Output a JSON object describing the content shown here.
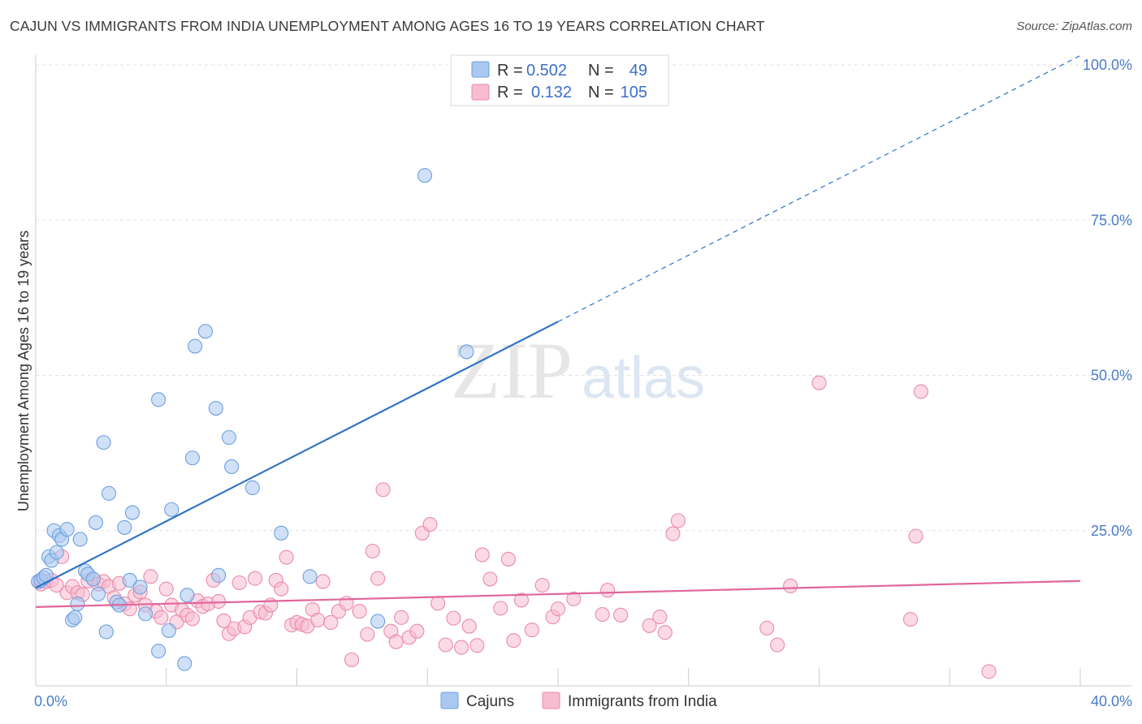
{
  "title": "CAJUN VS IMMIGRANTS FROM INDIA UNEMPLOYMENT AMONG AGES 16 TO 19 YEARS CORRELATION CHART",
  "source": "Source: ZipAtlas.com",
  "watermark": {
    "zip": "ZIP",
    "atlas": "atlas"
  },
  "legend": {
    "rows": [
      {
        "r_label": "R =",
        "r_value": "0.502",
        "n_label": "N =",
        "n_value": "49",
        "color": "#a9c8f0",
        "stroke": "#6e9fe0"
      },
      {
        "r_label": "R =",
        "r_value": "0.132",
        "n_label": "N =",
        "n_value": "105",
        "color": "#f7bcd0",
        "stroke": "#ea8aaa"
      }
    ]
  },
  "bottom_legend": [
    {
      "label": "Cajuns",
      "color": "#a9c8f0",
      "stroke": "#6e9fe0"
    },
    {
      "label": "Immigrants from India",
      "color": "#f7bcd0",
      "stroke": "#ea8aaa"
    }
  ],
  "chart_data": {
    "type": "scatter",
    "xlabel": "",
    "ylabel": "Unemployment Among Ages 16 to 19 years",
    "xlim": [
      0,
      40
    ],
    "ylim": [
      0,
      100
    ],
    "x_tick_labels": [
      {
        "value": 0,
        "label": "0.0%"
      },
      {
        "value": 40,
        "label": "40.0%"
      }
    ],
    "y_tick_labels": [
      {
        "value": 25,
        "label": "25.0%"
      },
      {
        "value": 50,
        "label": "50.0%"
      },
      {
        "value": 75,
        "label": "75.0%"
      },
      {
        "value": 100,
        "label": "100.0%"
      }
    ],
    "grid": true,
    "series": [
      {
        "name": "Cajuns",
        "color": "#a9c8f0",
        "stroke": "#6e9fe0",
        "line_color": "#2f72c8",
        "trend": {
          "x0": 0,
          "y0": 15.8,
          "x1": 40,
          "y1": 101.5,
          "solid_until_x": 20
        },
        "points": [
          [
            0.1,
            16.8
          ],
          [
            0.2,
            17.0
          ],
          [
            0.3,
            17.4
          ],
          [
            0.4,
            17.8
          ],
          [
            0.5,
            20.8
          ],
          [
            0.6,
            20.2
          ],
          [
            0.7,
            25.0
          ],
          [
            0.8,
            21.5
          ],
          [
            0.9,
            24.2
          ],
          [
            1.0,
            23.6
          ],
          [
            1.2,
            25.2
          ],
          [
            1.4,
            10.6
          ],
          [
            1.5,
            11.0
          ],
          [
            1.6,
            13.2
          ],
          [
            1.7,
            23.6
          ],
          [
            1.9,
            18.5
          ],
          [
            2.0,
            18.0
          ],
          [
            2.2,
            17.2
          ],
          [
            2.3,
            26.3
          ],
          [
            2.4,
            14.8
          ],
          [
            2.6,
            39.2
          ],
          [
            2.7,
            8.7
          ],
          [
            2.8,
            31.0
          ],
          [
            3.1,
            13.5
          ],
          [
            3.2,
            13.0
          ],
          [
            3.4,
            25.5
          ],
          [
            3.6,
            17.0
          ],
          [
            3.7,
            27.9
          ],
          [
            4.0,
            15.9
          ],
          [
            4.2,
            11.6
          ],
          [
            4.7,
            5.6
          ],
          [
            4.7,
            46.1
          ],
          [
            5.1,
            8.9
          ],
          [
            5.2,
            28.4
          ],
          [
            5.7,
            3.6
          ],
          [
            5.8,
            14.6
          ],
          [
            6.0,
            36.7
          ],
          [
            6.1,
            54.7
          ],
          [
            6.5,
            57.1
          ],
          [
            6.9,
            44.7
          ],
          [
            7.0,
            17.8
          ],
          [
            7.4,
            40.0
          ],
          [
            7.5,
            35.3
          ],
          [
            8.3,
            31.9
          ],
          [
            9.4,
            24.6
          ],
          [
            10.5,
            17.6
          ],
          [
            13.1,
            10.4
          ],
          [
            14.9,
            82.2
          ],
          [
            16.5,
            53.8
          ]
        ]
      },
      {
        "name": "Immigrants from India",
        "color": "#f7bcd0",
        "stroke": "#ea8aaa",
        "line_color": "#e0679a",
        "trend": {
          "x0": 0,
          "y0": 12.7,
          "x1": 40,
          "y1": 16.9
        },
        "points": [
          [
            0.1,
            16.8
          ],
          [
            0.2,
            16.4
          ],
          [
            0.4,
            16.8
          ],
          [
            0.6,
            17.0
          ],
          [
            0.8,
            16.2
          ],
          [
            1.0,
            20.8
          ],
          [
            1.2,
            15.0
          ],
          [
            1.4,
            16.0
          ],
          [
            1.6,
            15.0
          ],
          [
            1.8,
            14.7
          ],
          [
            2.0,
            16.9
          ],
          [
            2.2,
            17.2
          ],
          [
            2.4,
            16.4
          ],
          [
            2.6,
            16.8
          ],
          [
            2.8,
            16.0
          ],
          [
            3.0,
            14.2
          ],
          [
            3.2,
            16.5
          ],
          [
            3.4,
            13.2
          ],
          [
            3.6,
            12.4
          ],
          [
            3.8,
            14.6
          ],
          [
            4.0,
            15.1
          ],
          [
            4.2,
            13.0
          ],
          [
            4.4,
            17.6
          ],
          [
            4.6,
            12.0
          ],
          [
            4.8,
            11.0
          ],
          [
            5.0,
            15.6
          ],
          [
            5.2,
            13.0
          ],
          [
            5.4,
            10.3
          ],
          [
            5.6,
            12.2
          ],
          [
            5.8,
            11.4
          ],
          [
            6.0,
            10.8
          ],
          [
            6.2,
            13.7
          ],
          [
            6.4,
            12.8
          ],
          [
            6.6,
            13.2
          ],
          [
            6.8,
            17.0
          ],
          [
            7.0,
            13.6
          ],
          [
            7.2,
            10.5
          ],
          [
            7.4,
            8.4
          ],
          [
            7.6,
            9.2
          ],
          [
            7.8,
            16.6
          ],
          [
            8.0,
            9.5
          ],
          [
            8.2,
            11.0
          ],
          [
            8.4,
            17.3
          ],
          [
            8.6,
            11.9
          ],
          [
            8.8,
            11.7
          ],
          [
            9.0,
            13.0
          ],
          [
            9.2,
            17.0
          ],
          [
            9.4,
            15.6
          ],
          [
            9.6,
            20.7
          ],
          [
            9.8,
            9.8
          ],
          [
            10.0,
            10.2
          ],
          [
            10.2,
            9.9
          ],
          [
            10.4,
            9.6
          ],
          [
            10.6,
            12.3
          ],
          [
            10.8,
            10.6
          ],
          [
            11.0,
            16.8
          ],
          [
            11.3,
            10.2
          ],
          [
            11.6,
            12.0
          ],
          [
            11.9,
            13.3
          ],
          [
            12.1,
            4.2
          ],
          [
            12.4,
            12.0
          ],
          [
            12.7,
            8.3
          ],
          [
            12.9,
            21.7
          ],
          [
            13.1,
            17.3
          ],
          [
            13.3,
            31.6
          ],
          [
            13.6,
            8.8
          ],
          [
            13.8,
            7.1
          ],
          [
            14.0,
            11.0
          ],
          [
            14.3,
            7.8
          ],
          [
            14.6,
            8.8
          ],
          [
            14.8,
            24.6
          ],
          [
            15.1,
            26.0
          ],
          [
            15.4,
            13.3
          ],
          [
            15.7,
            6.6
          ],
          [
            16.0,
            10.9
          ],
          [
            16.3,
            6.2
          ],
          [
            16.6,
            9.6
          ],
          [
            16.9,
            6.5
          ],
          [
            17.1,
            21.1
          ],
          [
            17.4,
            17.2
          ],
          [
            17.8,
            12.5
          ],
          [
            18.1,
            20.4
          ],
          [
            18.3,
            7.3
          ],
          [
            18.6,
            13.8
          ],
          [
            19.0,
            9.0
          ],
          [
            19.4,
            16.2
          ],
          [
            19.8,
            11.1
          ],
          [
            20.0,
            12.4
          ],
          [
            20.6,
            14.0
          ],
          [
            21.7,
            11.5
          ],
          [
            21.9,
            15.4
          ],
          [
            22.4,
            11.4
          ],
          [
            23.5,
            9.7
          ],
          [
            23.9,
            11.1
          ],
          [
            24.1,
            8.6
          ],
          [
            24.4,
            24.5
          ],
          [
            24.6,
            26.6
          ],
          [
            28.0,
            9.3
          ],
          [
            28.4,
            6.6
          ],
          [
            28.9,
            16.1
          ],
          [
            30.0,
            48.8
          ],
          [
            33.5,
            10.7
          ],
          [
            33.7,
            24.1
          ],
          [
            33.9,
            47.4
          ],
          [
            36.5,
            2.3
          ]
        ]
      }
    ]
  }
}
